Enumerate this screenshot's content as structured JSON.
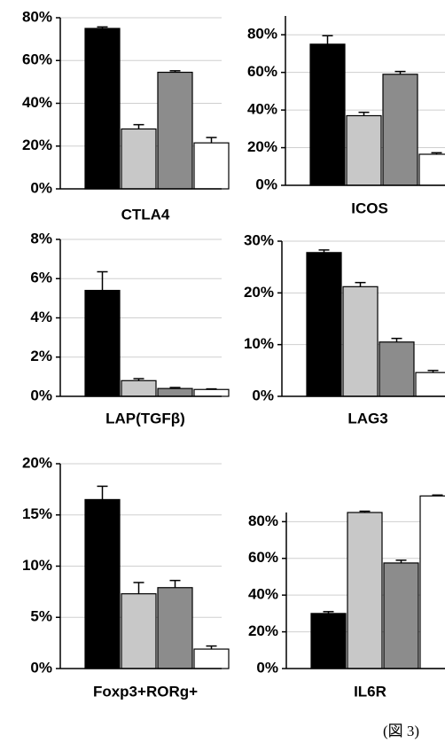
{
  "chart_data": [
    {
      "type": "bar",
      "title": "CTLA4",
      "values": [
        75,
        28,
        54.5,
        21.5
      ],
      "errors": [
        0.7,
        2,
        0.7,
        2.5
      ],
      "colors": [
        "#000000",
        "#c8c8c8",
        "#8c8c8c",
        "#ffffff"
      ],
      "ylim": [
        0,
        80
      ],
      "yticks": [
        {
          "value": 0,
          "label": "0%"
        },
        {
          "value": 20,
          "label": "20%"
        },
        {
          "value": 40,
          "label": "40%"
        },
        {
          "value": 60,
          "label": "60%"
        },
        {
          "value": 80,
          "label": "80%"
        }
      ],
      "grid": true
    },
    {
      "type": "bar",
      "title": "ICOS",
      "values": [
        75,
        37,
        59,
        16.5
      ],
      "errors": [
        4.5,
        1.8,
        1.5,
        0.8
      ],
      "colors": [
        "#000000",
        "#c8c8c8",
        "#8c8c8c",
        "#ffffff"
      ],
      "ylim": [
        0,
        90
      ],
      "yticks": [
        {
          "value": 0,
          "label": "0%"
        },
        {
          "value": 20,
          "label": "20%"
        },
        {
          "value": 40,
          "label": "40%"
        },
        {
          "value": 60,
          "label": "60%"
        },
        {
          "value": 80,
          "label": "80%"
        }
      ],
      "grid": true
    },
    {
      "type": "bar",
      "title": "LAP(TGFβ)",
      "values": [
        5.4,
        0.8,
        0.4,
        0.35
      ],
      "errors": [
        0.95,
        0.1,
        0.05,
        0.03
      ],
      "colors": [
        "#000000",
        "#c8c8c8",
        "#8c8c8c",
        "#ffffff"
      ],
      "ylim": [
        0,
        8
      ],
      "yticks": [
        {
          "value": 0,
          "label": "0%"
        },
        {
          "value": 2,
          "label": "2%"
        },
        {
          "value": 4,
          "label": "4%"
        },
        {
          "value": 6,
          "label": "6%"
        },
        {
          "value": 8,
          "label": "8%"
        }
      ],
      "grid": true
    },
    {
      "type": "bar",
      "title": "LAG3",
      "values": [
        27.8,
        21.2,
        10.5,
        4.6
      ],
      "errors": [
        0.5,
        0.8,
        0.7,
        0.4
      ],
      "colors": [
        "#000000",
        "#c8c8c8",
        "#8c8c8c",
        "#ffffff"
      ],
      "ylim": [
        0,
        30
      ],
      "yticks": [
        {
          "value": 0,
          "label": "0%"
        },
        {
          "value": 10,
          "label": "10%"
        },
        {
          "value": 20,
          "label": "20%"
        },
        {
          "value": 30,
          "label": "30%"
        }
      ],
      "grid": true
    },
    {
      "type": "bar",
      "title": "Foxp3+RORg+",
      "values": [
        16.5,
        7.3,
        7.9,
        1.9
      ],
      "errors": [
        1.3,
        1.1,
        0.7,
        0.3
      ],
      "colors": [
        "#000000",
        "#c8c8c8",
        "#8c8c8c",
        "#ffffff"
      ],
      "ylim": [
        0,
        20
      ],
      "yticks": [
        {
          "value": 0,
          "label": "0%"
        },
        {
          "value": 5,
          "label": "5%"
        },
        {
          "value": 10,
          "label": "10%"
        },
        {
          "value": 15,
          "label": "15%"
        },
        {
          "value": 20,
          "label": "20%"
        }
      ],
      "grid": true
    },
    {
      "type": "bar",
      "title": "IL6R",
      "values": [
        30,
        85,
        57.5,
        94
      ],
      "errors": [
        1,
        0.7,
        1.5,
        0.5
      ],
      "colors": [
        "#000000",
        "#c8c8c8",
        "#8c8c8c",
        "#ffffff"
      ],
      "ylim": [
        0,
        85
      ],
      "yticks": [
        {
          "value": 0,
          "label": "0%"
        },
        {
          "value": 20,
          "label": "20%"
        },
        {
          "value": 40,
          "label": "40%"
        },
        {
          "value": 60,
          "label": "60%"
        },
        {
          "value": 80,
          "label": "80%"
        }
      ],
      "grid": true
    }
  ],
  "caption": "(図 3)"
}
